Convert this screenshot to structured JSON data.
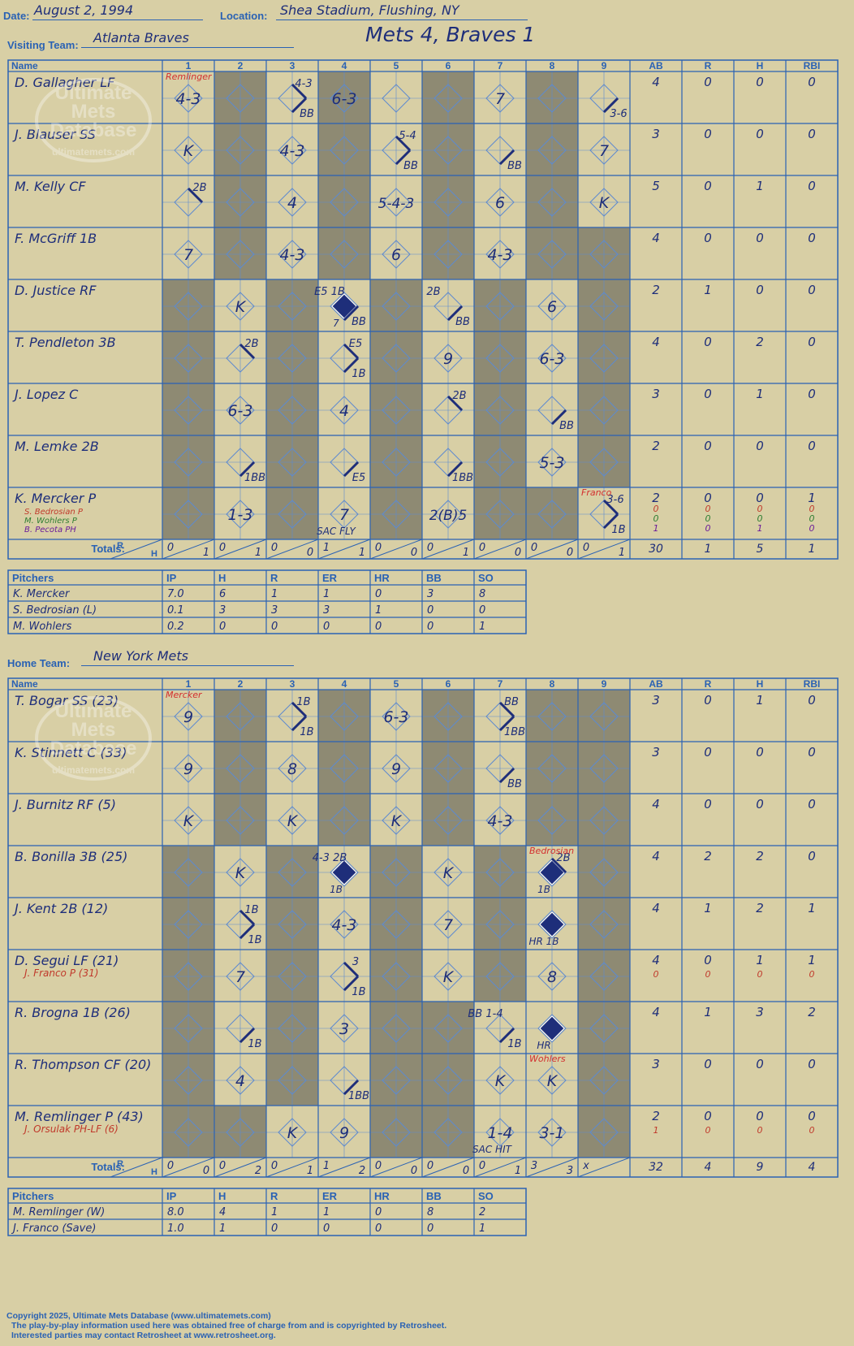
{
  "header": {
    "date_label": "Date:",
    "date": "August 2, 1994",
    "location_label": "Location:",
    "location": "Shea Stadium, Flushing, NY",
    "visiting_label": "Visiting Team:",
    "visiting_team": "Atlanta Braves",
    "home_label": "Home Team:",
    "home_team": "New York Mets",
    "result": "Mets 4, Braves 1"
  },
  "grid_headers": [
    "Name",
    "1",
    "2",
    "3",
    "4",
    "5",
    "6",
    "7",
    "8",
    "9",
    "AB",
    "R",
    "H",
    "RBI"
  ],
  "totals_label": "Totals:",
  "rh_labels": [
    "R",
    "H"
  ],
  "pitcher_headers": [
    "Pitchers",
    "IP",
    "H",
    "R",
    "ER",
    "HR",
    "BB",
    "SO"
  ],
  "visitors": {
    "players": [
      {
        "name": "D. Gallagher LF",
        "subs": [],
        "stats": [
          [
            "4",
            "0",
            "0",
            "0"
          ]
        ]
      },
      {
        "name": "J. Blauser SS",
        "subs": [],
        "stats": [
          [
            "3",
            "0",
            "0",
            "0"
          ]
        ]
      },
      {
        "name": "M. Kelly CF",
        "subs": [],
        "stats": [
          [
            "5",
            "0",
            "1",
            "0"
          ]
        ]
      },
      {
        "name": "F. McGriff 1B",
        "subs": [],
        "stats": [
          [
            "4",
            "0",
            "0",
            "0"
          ]
        ]
      },
      {
        "name": "D. Justice RF",
        "subs": [],
        "stats": [
          [
            "2",
            "1",
            "0",
            "0"
          ]
        ]
      },
      {
        "name": "T. Pendleton 3B",
        "subs": [],
        "stats": [
          [
            "4",
            "0",
            "2",
            "0"
          ]
        ]
      },
      {
        "name": "J. Lopez C",
        "subs": [],
        "stats": [
          [
            "3",
            "0",
            "1",
            "0"
          ]
        ]
      },
      {
        "name": "M. Lemke 2B",
        "subs": [],
        "stats": [
          [
            "2",
            "0",
            "0",
            "0"
          ]
        ]
      },
      {
        "name": "K. Mercker P",
        "subs": [
          {
            "name": "S. Bedrosian P",
            "color": "#c0392b"
          },
          {
            "name": "M. Wohlers P",
            "color": "#2e7d32"
          },
          {
            "name": "B. Pecota PH",
            "color": "#6a1b9a"
          }
        ],
        "stats": [
          [
            "2",
            "0",
            "0",
            "1"
          ],
          [
            "0",
            "0",
            "0",
            "0"
          ],
          [
            "0",
            "0",
            "0",
            "0"
          ],
          [
            "1",
            "0",
            "1",
            "0"
          ]
        ]
      }
    ],
    "marks": [
      {
        "r": 0,
        "c": 0,
        "t": "4-3"
      },
      {
        "r": 0,
        "c": 2,
        "t": "4-3",
        "p": "tr"
      },
      {
        "r": 0,
        "c": 2,
        "t": "BB",
        "p": "br"
      },
      {
        "r": 0,
        "c": 3,
        "t": "6-3"
      },
      {
        "r": 0,
        "c": 6,
        "t": "7"
      },
      {
        "r": 0,
        "c": 8,
        "t": "3-6",
        "p": "br"
      },
      {
        "r": 1,
        "c": 0,
        "t": "K"
      },
      {
        "r": 1,
        "c": 2,
        "t": "4-3"
      },
      {
        "r": 1,
        "c": 4,
        "t": "5-4",
        "p": "tr"
      },
      {
        "r": 1,
        "c": 4,
        "t": "BB",
        "p": "br"
      },
      {
        "r": 1,
        "c": 6,
        "t": "BB",
        "p": "br"
      },
      {
        "r": 1,
        "c": 8,
        "t": "7"
      },
      {
        "r": 2,
        "c": 0,
        "t": "2B",
        "p": "tr"
      },
      {
        "r": 2,
        "c": 2,
        "t": "4"
      },
      {
        "r": 2,
        "c": 4,
        "t": "5-4-3"
      },
      {
        "r": 2,
        "c": 6,
        "t": "6"
      },
      {
        "r": 2,
        "c": 8,
        "t": "K"
      },
      {
        "r": 3,
        "c": 0,
        "t": "7"
      },
      {
        "r": 3,
        "c": 2,
        "t": "4-3"
      },
      {
        "r": 3,
        "c": 4,
        "t": "6"
      },
      {
        "r": 3,
        "c": 6,
        "t": "4-3"
      },
      {
        "r": 4,
        "c": 1,
        "t": "K"
      },
      {
        "r": 4,
        "c": 3,
        "t": "E5 1B",
        "p": "tl"
      },
      {
        "r": 4,
        "c": 3,
        "t": "7",
        "p": "bl"
      },
      {
        "r": 4,
        "c": 3,
        "t": "BB",
        "p": "br"
      },
      {
        "r": 4,
        "c": 5,
        "t": "2B",
        "p": "tl"
      },
      {
        "r": 4,
        "c": 5,
        "t": "BB",
        "p": "br"
      },
      {
        "r": 4,
        "c": 7,
        "t": "6"
      },
      {
        "r": 5,
        "c": 1,
        "t": "2B",
        "p": "tr"
      },
      {
        "r": 5,
        "c": 3,
        "t": "E5",
        "p": "tr"
      },
      {
        "r": 5,
        "c": 3,
        "t": "1B",
        "p": "br"
      },
      {
        "r": 5,
        "c": 5,
        "t": "9"
      },
      {
        "r": 5,
        "c": 7,
        "t": "6-3"
      },
      {
        "r": 6,
        "c": 1,
        "t": "6-3"
      },
      {
        "r": 6,
        "c": 3,
        "t": "4"
      },
      {
        "r": 6,
        "c": 5,
        "t": "2B",
        "p": "tr"
      },
      {
        "r": 6,
        "c": 7,
        "t": "BB",
        "p": "br"
      },
      {
        "r": 7,
        "c": 1,
        "t": "1BB",
        "p": "br"
      },
      {
        "r": 7,
        "c": 3,
        "t": "E5",
        "p": "br"
      },
      {
        "r": 7,
        "c": 5,
        "t": "1BB",
        "p": "br"
      },
      {
        "r": 7,
        "c": 7,
        "t": "5-3"
      },
      {
        "r": 8,
        "c": 1,
        "t": "1-3"
      },
      {
        "r": 8,
        "c": 3,
        "t": "7"
      },
      {
        "r": 8,
        "c": 3,
        "t": "SAC FLY",
        "p": "bl"
      },
      {
        "r": 8,
        "c": 5,
        "t": "2(B)5"
      },
      {
        "r": 8,
        "c": 8,
        "t": "3-6",
        "p": "tr"
      },
      {
        "r": 8,
        "c": 8,
        "t": "1B",
        "p": "br"
      }
    ],
    "pitcher_notes": [
      {
        "r": 0,
        "c": 0,
        "t": "Remlinger"
      },
      {
        "r": 8,
        "c": 8,
        "t": "Franco"
      }
    ],
    "runs_scored": [
      {
        "r": 4,
        "c": 3
      }
    ],
    "line_totals": [
      [
        "0",
        "1"
      ],
      [
        "0",
        "1"
      ],
      [
        "0",
        "0"
      ],
      [
        "1",
        "1"
      ],
      [
        "0",
        "0"
      ],
      [
        "0",
        "1"
      ],
      [
        "0",
        "0"
      ],
      [
        "0",
        "0"
      ],
      [
        "0",
        "1"
      ]
    ],
    "totals": [
      "30",
      "1",
      "5",
      "1"
    ],
    "pitchers": [
      [
        "K. Mercker",
        "7.0",
        "6",
        "1",
        "1",
        "0",
        "3",
        "8"
      ],
      [
        "S. Bedrosian (L)",
        "0.1",
        "3",
        "3",
        "3",
        "1",
        "0",
        "0"
      ],
      [
        "M. Wohlers",
        "0.2",
        "0",
        "0",
        "0",
        "0",
        "0",
        "1"
      ]
    ]
  },
  "home": {
    "players": [
      {
        "name": "T. Bogar SS (23)",
        "subs": [],
        "stats": [
          [
            "3",
            "0",
            "1",
            "0"
          ]
        ]
      },
      {
        "name": "K. Stinnett C (33)",
        "subs": [],
        "stats": [
          [
            "3",
            "0",
            "0",
            "0"
          ]
        ]
      },
      {
        "name": "J. Burnitz RF (5)",
        "subs": [],
        "stats": [
          [
            "4",
            "0",
            "0",
            "0"
          ]
        ]
      },
      {
        "name": "B. Bonilla 3B (25)",
        "subs": [],
        "stats": [
          [
            "4",
            "2",
            "2",
            "0"
          ]
        ]
      },
      {
        "name": "J. Kent 2B (12)",
        "subs": [],
        "stats": [
          [
            "4",
            "1",
            "2",
            "1"
          ]
        ]
      },
      {
        "name": "D. Segui LF (21)",
        "subs": [
          {
            "name": "J. Franco P (31)",
            "color": "#c0392b"
          }
        ],
        "stats": [
          [
            "4",
            "0",
            "1",
            "1"
          ],
          [
            "0",
            "0",
            "0",
            "0"
          ]
        ]
      },
      {
        "name": "R. Brogna 1B (26)",
        "subs": [],
        "stats": [
          [
            "4",
            "1",
            "3",
            "2"
          ]
        ]
      },
      {
        "name": "R. Thompson CF (20)",
        "subs": [],
        "stats": [
          [
            "3",
            "0",
            "0",
            "0"
          ]
        ]
      },
      {
        "name": "M. Remlinger P (43)",
        "subs": [
          {
            "name": "J. Orsulak PH-LF (6)",
            "color": "#c0392b"
          }
        ],
        "stats": [
          [
            "2",
            "0",
            "0",
            "0"
          ],
          [
            "1",
            "0",
            "0",
            "0"
          ]
        ]
      }
    ],
    "marks": [
      {
        "r": 0,
        "c": 0,
        "t": "9"
      },
      {
        "r": 0,
        "c": 2,
        "t": "1B",
        "p": "tr"
      },
      {
        "r": 0,
        "c": 2,
        "t": "1B",
        "p": "br"
      },
      {
        "r": 0,
        "c": 4,
        "t": "6-3"
      },
      {
        "r": 0,
        "c": 6,
        "t": "BB",
        "p": "tr"
      },
      {
        "r": 0,
        "c": 6,
        "t": "1BB",
        "p": "br"
      },
      {
        "r": 1,
        "c": 0,
        "t": "9"
      },
      {
        "r": 1,
        "c": 2,
        "t": "8"
      },
      {
        "r": 1,
        "c": 4,
        "t": "9"
      },
      {
        "r": 1,
        "c": 6,
        "t": "BB",
        "p": "br"
      },
      {
        "r": 2,
        "c": 0,
        "t": "K"
      },
      {
        "r": 2,
        "c": 2,
        "t": "K"
      },
      {
        "r": 2,
        "c": 4,
        "t": "K"
      },
      {
        "r": 2,
        "c": 6,
        "t": "4-3"
      },
      {
        "r": 3,
        "c": 1,
        "t": "K"
      },
      {
        "r": 3,
        "c": 3,
        "t": "4-3 2B",
        "p": "tl"
      },
      {
        "r": 3,
        "c": 3,
        "t": "1B",
        "p": "bl"
      },
      {
        "r": 3,
        "c": 5,
        "t": "K"
      },
      {
        "r": 3,
        "c": 7,
        "t": "2B",
        "p": "tr"
      },
      {
        "r": 3,
        "c": 7,
        "t": "1B",
        "p": "bl"
      },
      {
        "r": 4,
        "c": 1,
        "t": "1B",
        "p": "tr"
      },
      {
        "r": 4,
        "c": 1,
        "t": "1B",
        "p": "br"
      },
      {
        "r": 4,
        "c": 3,
        "t": "4-3"
      },
      {
        "r": 4,
        "c": 5,
        "t": "7"
      },
      {
        "r": 4,
        "c": 7,
        "t": "HR 1B",
        "p": "bl"
      },
      {
        "r": 5,
        "c": 1,
        "t": "7"
      },
      {
        "r": 5,
        "c": 3,
        "t": "3",
        "p": "tr"
      },
      {
        "r": 5,
        "c": 3,
        "t": "1B",
        "p": "br"
      },
      {
        "r": 5,
        "c": 5,
        "t": "K"
      },
      {
        "r": 5,
        "c": 7,
        "t": "8"
      },
      {
        "r": 6,
        "c": 1,
        "t": "1B",
        "p": "br"
      },
      {
        "r": 6,
        "c": 3,
        "t": "3"
      },
      {
        "r": 6,
        "c": 6,
        "t": "BB 1-4",
        "p": "tl"
      },
      {
        "r": 6,
        "c": 6,
        "t": "1B",
        "p": "br"
      },
      {
        "r": 6,
        "c": 7,
        "t": "HR",
        "p": "bl"
      },
      {
        "r": 7,
        "c": 1,
        "t": "4"
      },
      {
        "r": 7,
        "c": 3,
        "t": "1BB",
        "p": "br"
      },
      {
        "r": 7,
        "c": 6,
        "t": "K"
      },
      {
        "r": 7,
        "c": 7,
        "t": "K"
      },
      {
        "r": 8,
        "c": 2,
        "t": "K"
      },
      {
        "r": 8,
        "c": 3,
        "t": "9"
      },
      {
        "r": 8,
        "c": 6,
        "t": "1-4"
      },
      {
        "r": 8,
        "c": 6,
        "t": "SAC HIT",
        "p": "bl"
      },
      {
        "r": 8,
        "c": 7,
        "t": "3-1"
      }
    ],
    "pitcher_notes": [
      {
        "r": 0,
        "c": 0,
        "t": "Mercker"
      },
      {
        "r": 3,
        "c": 7,
        "t": "Bedrosian"
      },
      {
        "r": 7,
        "c": 7,
        "t": "Wohlers"
      }
    ],
    "runs_scored": [
      {
        "r": 3,
        "c": 3
      },
      {
        "r": 3,
        "c": 7
      },
      {
        "r": 4,
        "c": 7
      },
      {
        "r": 6,
        "c": 7
      }
    ],
    "line_totals": [
      [
        "0",
        "0"
      ],
      [
        "0",
        "2"
      ],
      [
        "0",
        "1"
      ],
      [
        "1",
        "2"
      ],
      [
        "0",
        "0"
      ],
      [
        "0",
        "0"
      ],
      [
        "0",
        "1"
      ],
      [
        "3",
        "3"
      ],
      [
        "x",
        ""
      ]
    ],
    "totals": [
      "32",
      "4",
      "9",
      "4"
    ],
    "pitchers": [
      [
        "M. Remlinger (W)",
        "8.0",
        "4",
        "1",
        "1",
        "0",
        "8",
        "2"
      ],
      [
        "J. Franco (Save)",
        "1.0",
        "1",
        "0",
        "0",
        "0",
        "0",
        "1"
      ]
    ]
  },
  "watermark": [
    "Ultimate",
    "Mets",
    "Database",
    "ultimatemets.com"
  ],
  "footer": [
    "Copyright 2025, Ultimate Mets Database (www.ultimatemets.com)",
    "The play-by-play information used here was obtained free of charge from and is copyrighted by Retrosheet.",
    "Interested parties may contact Retrosheet at www.retrosheet.org."
  ],
  "colors": {
    "shade": "#8e8a73",
    "line": "#2a62b4",
    "ink": "#1e2e7a",
    "red": "#d32f2f"
  }
}
